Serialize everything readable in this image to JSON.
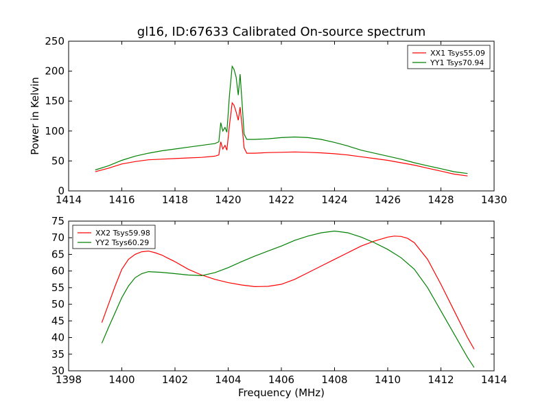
{
  "figure": {
    "title": "gl16, ID:67633 Calibrated On-source spectrum"
  },
  "chart_data": [
    {
      "type": "line",
      "title": "gl16, ID:67633 Calibrated On-source spectrum",
      "xlabel": "",
      "ylabel": "Power in Kelvin",
      "xlim": [
        1414,
        1430
      ],
      "ylim": [
        0,
        250
      ],
      "xticks": [
        1414,
        1416,
        1418,
        1420,
        1422,
        1424,
        1426,
        1428,
        1430
      ],
      "yticks": [
        0,
        50,
        100,
        150,
        200,
        250
      ],
      "grid": false,
      "legend": "top-right",
      "series": [
        {
          "name": "XX1 Tsys55.09",
          "color": "#ff0000",
          "x": [
            1415.0,
            1415.5,
            1416.0,
            1416.5,
            1417.0,
            1417.5,
            1418.0,
            1418.5,
            1419.0,
            1419.5,
            1419.65,
            1419.72,
            1419.8,
            1419.88,
            1419.95,
            1420.05,
            1420.15,
            1420.22,
            1420.3,
            1420.38,
            1420.45,
            1420.52,
            1420.6,
            1420.7,
            1421.0,
            1421.5,
            1422.0,
            1422.5,
            1423.0,
            1423.5,
            1424.0,
            1424.5,
            1425.0,
            1425.5,
            1426.0,
            1426.5,
            1427.0,
            1427.5,
            1428.0,
            1428.5,
            1429.0
          ],
          "values": [
            32,
            38,
            45,
            49,
            52,
            53,
            54,
            55,
            56,
            58,
            60,
            82,
            70,
            76,
            68,
            110,
            147,
            143,
            132,
            118,
            140,
            110,
            72,
            63,
            63,
            64,
            64.5,
            65,
            64.5,
            63.5,
            62,
            60,
            57,
            54,
            51,
            47,
            43,
            38,
            33,
            28,
            25
          ]
        },
        {
          "name": "YY1 Tsys70.94",
          "color": "#008000",
          "x": [
            1415.0,
            1415.5,
            1416.0,
            1416.5,
            1417.0,
            1417.5,
            1418.0,
            1418.5,
            1419.0,
            1419.5,
            1419.65,
            1419.72,
            1419.8,
            1419.88,
            1419.95,
            1420.05,
            1420.15,
            1420.22,
            1420.3,
            1420.38,
            1420.45,
            1420.52,
            1420.6,
            1420.7,
            1421.0,
            1421.5,
            1422.0,
            1422.5,
            1423.0,
            1423.5,
            1424.0,
            1424.5,
            1425.0,
            1425.5,
            1426.0,
            1426.5,
            1427.0,
            1427.5,
            1428.0,
            1428.5,
            1429.0
          ],
          "values": [
            35,
            42,
            51,
            58,
            63,
            67,
            70,
            73,
            76,
            79,
            82,
            114,
            100,
            106,
            98,
            160,
            208,
            203,
            190,
            160,
            195,
            150,
            95,
            86,
            86,
            87,
            89,
            90,
            89,
            86,
            81,
            75,
            68,
            63,
            58,
            53,
            47,
            42,
            37,
            32,
            29
          ]
        }
      ]
    },
    {
      "type": "line",
      "title": "",
      "xlabel": "Frequency (MHz)",
      "ylabel": "",
      "xlim": [
        1398,
        1414
      ],
      "ylim": [
        30,
        75
      ],
      "xticks": [
        1398,
        1400,
        1402,
        1404,
        1406,
        1408,
        1410,
        1412,
        1414
      ],
      "yticks": [
        30,
        35,
        40,
        45,
        50,
        55,
        60,
        65,
        70,
        75
      ],
      "grid": false,
      "legend": "top-left",
      "series": [
        {
          "name": "XX2 Tsys59.98",
          "color": "#ff0000",
          "x": [
            1399.25,
            1399.5,
            1399.75,
            1400.0,
            1400.25,
            1400.5,
            1400.75,
            1401.0,
            1401.25,
            1401.5,
            1401.75,
            1402.0,
            1402.5,
            1403.0,
            1403.5,
            1404.0,
            1404.5,
            1405.0,
            1405.5,
            1406.0,
            1406.5,
            1407.0,
            1407.5,
            1408.0,
            1408.5,
            1409.0,
            1409.5,
            1410.0,
            1410.25,
            1410.5,
            1410.75,
            1411.0,
            1411.5,
            1412.0,
            1412.5,
            1413.0,
            1413.25
          ],
          "values": [
            44.5,
            50,
            55.5,
            60.5,
            63.5,
            65,
            65.8,
            66,
            65.5,
            64.8,
            63.8,
            62.8,
            60.5,
            58.8,
            57.5,
            56.5,
            55.8,
            55.3,
            55.4,
            56,
            57.5,
            59.5,
            61.5,
            63.5,
            65.5,
            67.5,
            69,
            70.2,
            70.5,
            70.4,
            69.8,
            68.5,
            63.5,
            56,
            48,
            40,
            36.5
          ]
        },
        {
          "name": "YY2 Tsys60.29",
          "color": "#008000",
          "x": [
            1399.25,
            1399.5,
            1399.75,
            1400.0,
            1400.25,
            1400.5,
            1400.75,
            1401.0,
            1401.5,
            1402.0,
            1402.5,
            1403.0,
            1403.5,
            1404.0,
            1404.5,
            1405.0,
            1405.5,
            1406.0,
            1406.5,
            1407.0,
            1407.5,
            1408.0,
            1408.5,
            1409.0,
            1409.5,
            1410.0,
            1410.5,
            1411.0,
            1411.5,
            1412.0,
            1412.5,
            1413.0,
            1413.25
          ],
          "values": [
            38.3,
            43,
            47.5,
            52,
            55.5,
            58,
            59.2,
            59.8,
            59.6,
            59.2,
            58.8,
            58.6,
            59.5,
            61,
            62.8,
            64.5,
            66,
            67.5,
            69.2,
            70.5,
            71.5,
            72,
            71.5,
            70.2,
            68.5,
            66.5,
            64,
            60.5,
            55,
            48,
            41,
            34,
            31
          ]
        }
      ]
    }
  ]
}
